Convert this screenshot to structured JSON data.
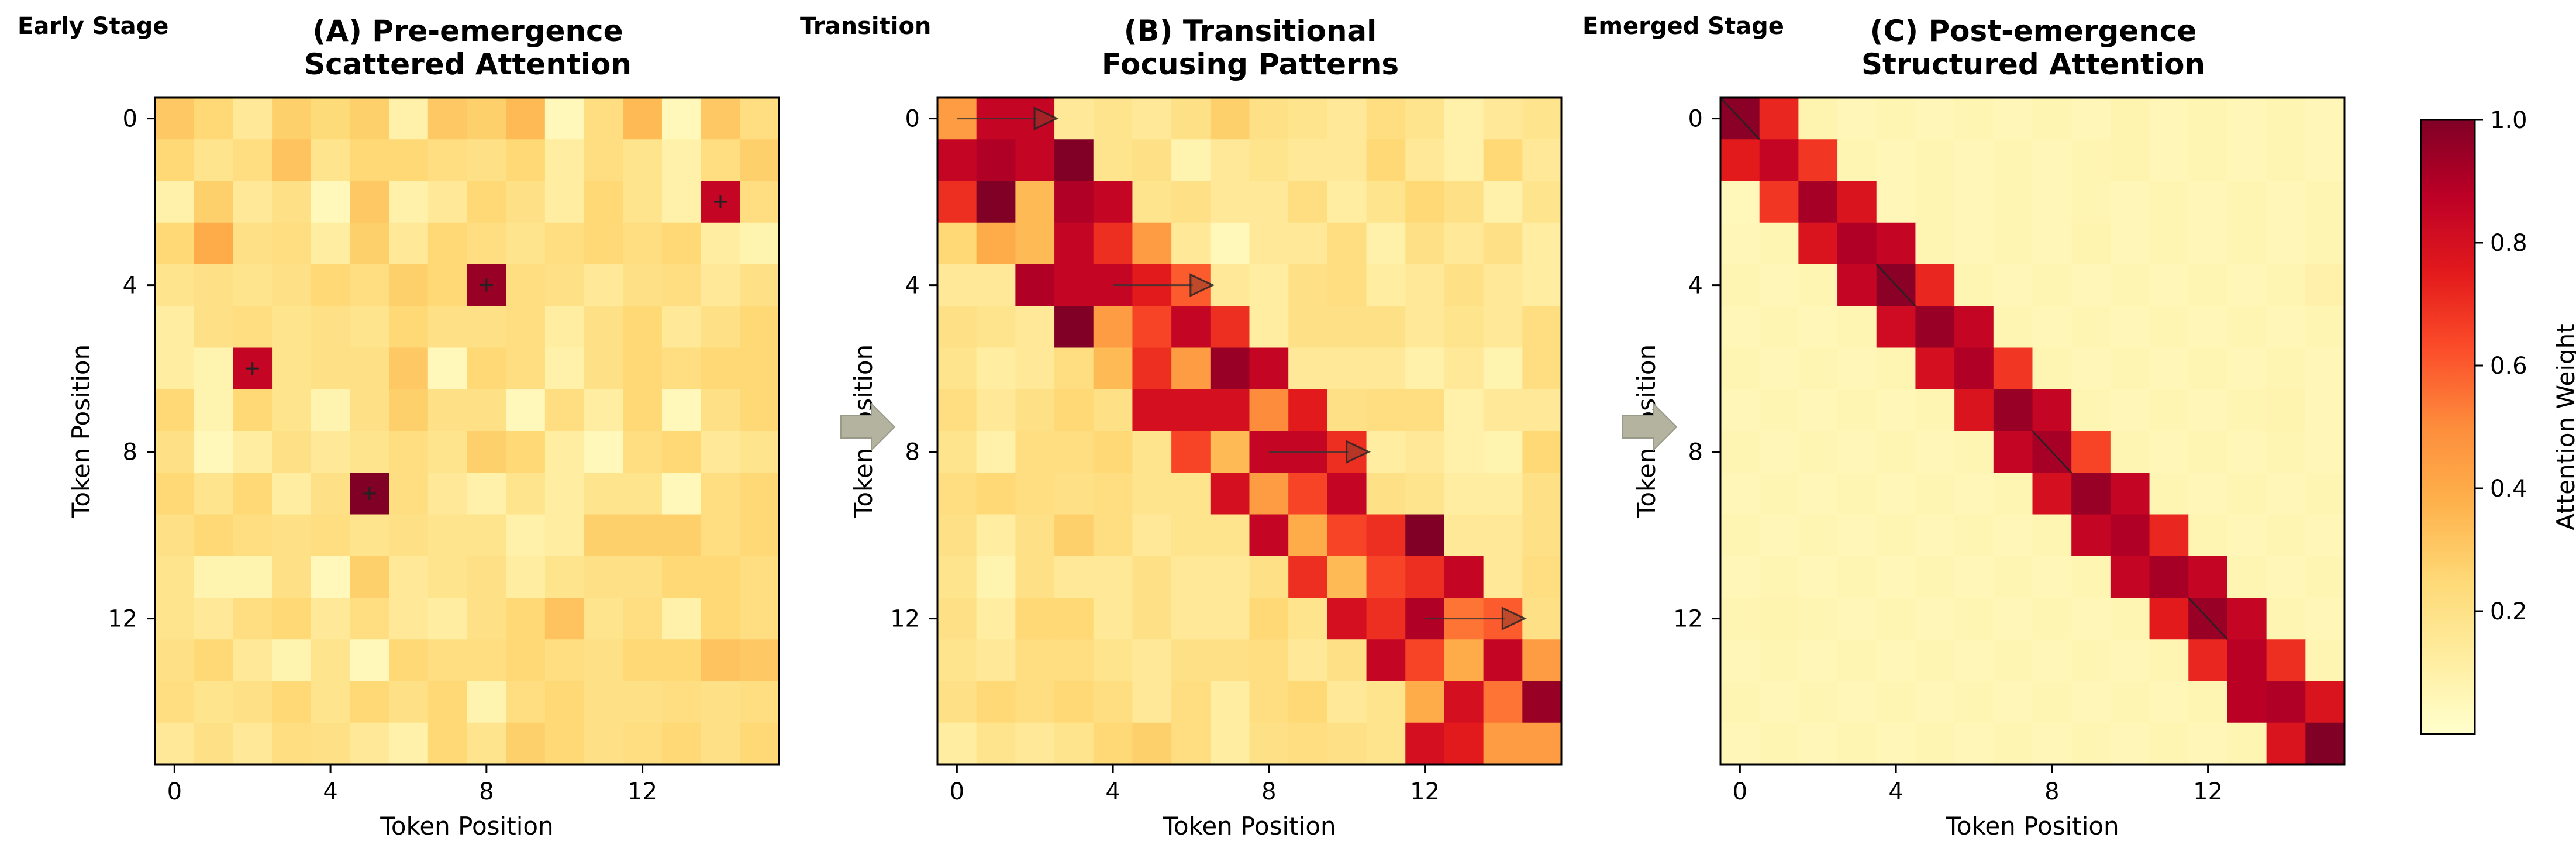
{
  "chart_data": [
    {
      "type": "heatmap",
      "stage_label": "Early Stage",
      "title_lines": [
        "(A) Pre-emergence",
        "Scattered Attention"
      ],
      "xlabel": "Token Position",
      "ylabel": "Token Position",
      "x_ticks": [
        0,
        4,
        8,
        12
      ],
      "y_ticks": [
        0,
        4,
        8,
        12
      ],
      "size": 16,
      "markers": [
        [
          2,
          14
        ],
        [
          4,
          8
        ],
        [
          6,
          2
        ],
        [
          9,
          5
        ]
      ],
      "arrows": [],
      "values": [
        [
          0.3,
          0.25,
          0.15,
          0.28,
          0.24,
          0.28,
          0.1,
          0.3,
          0.28,
          0.35,
          0.05,
          0.22,
          0.35,
          0.05,
          0.3,
          0.22
        ],
        [
          0.25,
          0.18,
          0.22,
          0.32,
          0.18,
          0.25,
          0.25,
          0.22,
          0.2,
          0.25,
          0.12,
          0.22,
          0.18,
          0.1,
          0.22,
          0.28
        ],
        [
          0.1,
          0.28,
          0.15,
          0.2,
          0.05,
          0.3,
          0.1,
          0.15,
          0.25,
          0.2,
          0.12,
          0.25,
          0.18,
          0.1,
          0.85,
          0.22
        ],
        [
          0.25,
          0.4,
          0.2,
          0.22,
          0.12,
          0.28,
          0.15,
          0.25,
          0.22,
          0.18,
          0.22,
          0.25,
          0.22,
          0.25,
          0.12,
          0.08
        ],
        [
          0.18,
          0.2,
          0.18,
          0.2,
          0.25,
          0.22,
          0.28,
          0.25,
          0.95,
          0.22,
          0.2,
          0.15,
          0.2,
          0.22,
          0.15,
          0.2
        ],
        [
          0.12,
          0.2,
          0.22,
          0.18,
          0.2,
          0.18,
          0.25,
          0.2,
          0.2,
          0.22,
          0.12,
          0.2,
          0.25,
          0.15,
          0.2,
          0.25
        ],
        [
          0.12,
          0.08,
          0.85,
          0.18,
          0.2,
          0.2,
          0.3,
          0.05,
          0.25,
          0.22,
          0.1,
          0.2,
          0.25,
          0.22,
          0.25,
          0.25
        ],
        [
          0.25,
          0.08,
          0.25,
          0.18,
          0.08,
          0.2,
          0.28,
          0.2,
          0.2,
          0.05,
          0.22,
          0.12,
          0.25,
          0.05,
          0.2,
          0.25
        ],
        [
          0.2,
          0.05,
          0.12,
          0.2,
          0.15,
          0.18,
          0.22,
          0.18,
          0.28,
          0.25,
          0.12,
          0.05,
          0.22,
          0.25,
          0.15,
          0.18
        ],
        [
          0.25,
          0.18,
          0.25,
          0.12,
          0.2,
          1.0,
          0.22,
          0.15,
          0.1,
          0.18,
          0.12,
          0.18,
          0.18,
          0.05,
          0.22,
          0.25
        ],
        [
          0.2,
          0.25,
          0.22,
          0.2,
          0.22,
          0.18,
          0.2,
          0.18,
          0.18,
          0.1,
          0.12,
          0.28,
          0.28,
          0.28,
          0.22,
          0.25
        ],
        [
          0.18,
          0.08,
          0.08,
          0.2,
          0.05,
          0.28,
          0.15,
          0.18,
          0.2,
          0.12,
          0.18,
          0.2,
          0.2,
          0.25,
          0.25,
          0.22
        ],
        [
          0.18,
          0.15,
          0.22,
          0.25,
          0.15,
          0.22,
          0.15,
          0.12,
          0.2,
          0.25,
          0.32,
          0.18,
          0.22,
          0.1,
          0.25,
          0.22
        ],
        [
          0.2,
          0.25,
          0.15,
          0.08,
          0.18,
          0.05,
          0.25,
          0.22,
          0.22,
          0.25,
          0.22,
          0.2,
          0.25,
          0.25,
          0.32,
          0.3
        ],
        [
          0.22,
          0.18,
          0.2,
          0.25,
          0.18,
          0.25,
          0.2,
          0.25,
          0.08,
          0.22,
          0.25,
          0.2,
          0.2,
          0.22,
          0.2,
          0.22
        ],
        [
          0.15,
          0.2,
          0.15,
          0.22,
          0.2,
          0.15,
          0.1,
          0.25,
          0.18,
          0.28,
          0.25,
          0.2,
          0.22,
          0.25,
          0.2,
          0.25
        ]
      ]
    },
    {
      "type": "heatmap",
      "stage_label": "Transition",
      "title_lines": [
        "(B) Transitional",
        "Focusing Patterns"
      ],
      "xlabel": "Token Position",
      "ylabel": "Token Position",
      "x_ticks": [
        0,
        4,
        8,
        12
      ],
      "y_ticks": [
        0,
        4,
        8,
        12
      ],
      "size": 16,
      "markers": [],
      "arrows": [
        [
          0,
          0,
          2.5
        ],
        [
          4,
          4,
          6.5
        ],
        [
          8,
          8,
          10.5
        ],
        [
          12,
          12,
          14.5
        ]
      ],
      "values": [
        [
          0.45,
          0.85,
          0.85,
          0.15,
          0.18,
          0.15,
          0.2,
          0.28,
          0.2,
          0.18,
          0.15,
          0.22,
          0.18,
          0.1,
          0.15,
          0.18
        ],
        [
          0.85,
          0.9,
          0.85,
          1.0,
          0.18,
          0.2,
          0.08,
          0.15,
          0.18,
          0.15,
          0.15,
          0.25,
          0.15,
          0.1,
          0.25,
          0.15
        ],
        [
          0.7,
          1.0,
          0.35,
          0.9,
          0.85,
          0.18,
          0.2,
          0.15,
          0.15,
          0.22,
          0.12,
          0.18,
          0.25,
          0.2,
          0.1,
          0.18
        ],
        [
          0.25,
          0.4,
          0.35,
          0.85,
          0.7,
          0.45,
          0.15,
          0.05,
          0.15,
          0.15,
          0.22,
          0.1,
          0.2,
          0.15,
          0.2,
          0.12
        ],
        [
          0.15,
          0.15,
          0.9,
          0.85,
          0.85,
          0.75,
          0.6,
          0.15,
          0.12,
          0.2,
          0.22,
          0.12,
          0.15,
          0.2,
          0.15,
          0.12
        ],
        [
          0.2,
          0.18,
          0.15,
          1.0,
          0.45,
          0.65,
          0.85,
          0.7,
          0.12,
          0.2,
          0.2,
          0.2,
          0.15,
          0.18,
          0.15,
          0.22
        ],
        [
          0.18,
          0.12,
          0.15,
          0.22,
          0.35,
          0.7,
          0.45,
          0.95,
          0.85,
          0.15,
          0.15,
          0.15,
          0.1,
          0.15,
          0.08,
          0.22
        ],
        [
          0.22,
          0.15,
          0.2,
          0.25,
          0.2,
          0.8,
          0.8,
          0.8,
          0.5,
          0.75,
          0.2,
          0.22,
          0.22,
          0.1,
          0.15,
          0.15
        ],
        [
          0.18,
          0.1,
          0.22,
          0.22,
          0.25,
          0.18,
          0.65,
          0.35,
          0.85,
          0.85,
          0.7,
          0.12,
          0.15,
          0.1,
          0.08,
          0.25
        ],
        [
          0.22,
          0.25,
          0.22,
          0.2,
          0.22,
          0.18,
          0.18,
          0.8,
          0.45,
          0.65,
          0.85,
          0.2,
          0.18,
          0.12,
          0.12,
          0.2
        ],
        [
          0.2,
          0.12,
          0.2,
          0.28,
          0.22,
          0.15,
          0.18,
          0.18,
          0.85,
          0.4,
          0.65,
          0.7,
          1.0,
          0.15,
          0.15,
          0.2
        ],
        [
          0.18,
          0.08,
          0.2,
          0.15,
          0.15,
          0.2,
          0.15,
          0.15,
          0.2,
          0.7,
          0.35,
          0.65,
          0.7,
          0.85,
          0.15,
          0.22
        ],
        [
          0.2,
          0.12,
          0.25,
          0.25,
          0.15,
          0.2,
          0.15,
          0.15,
          0.25,
          0.18,
          0.8,
          0.7,
          0.9,
          0.55,
          0.6,
          0.2
        ],
        [
          0.18,
          0.15,
          0.22,
          0.22,
          0.18,
          0.15,
          0.2,
          0.2,
          0.22,
          0.15,
          0.2,
          0.85,
          0.65,
          0.4,
          0.85,
          0.45
        ],
        [
          0.2,
          0.25,
          0.22,
          0.25,
          0.22,
          0.15,
          0.22,
          0.12,
          0.22,
          0.25,
          0.15,
          0.18,
          0.4,
          0.8,
          0.55,
          0.95
        ],
        [
          0.12,
          0.18,
          0.15,
          0.18,
          0.25,
          0.28,
          0.22,
          0.12,
          0.2,
          0.22,
          0.2,
          0.18,
          0.8,
          0.75,
          0.45,
          0.45
        ]
      ]
    },
    {
      "type": "heatmap",
      "stage_label": "Emerged Stage",
      "title_lines": [
        "(C) Post-emergence",
        "Structured Attention"
      ],
      "xlabel": "Token Position",
      "ylabel": "Token Position",
      "x_ticks": [
        0,
        4,
        8,
        12
      ],
      "y_ticks": [
        0,
        4,
        8,
        12
      ],
      "size": 16,
      "markers": [],
      "diagonal_strokes": [
        0,
        4,
        8,
        12
      ],
      "arrows": [],
      "values": [
        [
          0.98,
          0.72,
          0.08,
          0.06,
          0.07,
          0.06,
          0.07,
          0.06,
          0.07,
          0.06,
          0.08,
          0.06,
          0.07,
          0.06,
          0.07,
          0.06
        ],
        [
          0.75,
          0.85,
          0.68,
          0.07,
          0.06,
          0.07,
          0.06,
          0.07,
          0.06,
          0.07,
          0.08,
          0.06,
          0.07,
          0.06,
          0.07,
          0.06
        ],
        [
          0.05,
          0.68,
          0.92,
          0.78,
          0.06,
          0.07,
          0.06,
          0.07,
          0.06,
          0.07,
          0.06,
          0.07,
          0.06,
          0.07,
          0.06,
          0.07
        ],
        [
          0.06,
          0.07,
          0.78,
          0.9,
          0.85,
          0.07,
          0.06,
          0.07,
          0.06,
          0.08,
          0.06,
          0.07,
          0.06,
          0.07,
          0.06,
          0.07
        ],
        [
          0.07,
          0.06,
          0.07,
          0.85,
          0.98,
          0.72,
          0.07,
          0.06,
          0.07,
          0.06,
          0.07,
          0.06,
          0.07,
          0.06,
          0.07,
          0.1
        ],
        [
          0.06,
          0.07,
          0.06,
          0.07,
          0.82,
          0.95,
          0.85,
          0.07,
          0.06,
          0.07,
          0.06,
          0.07,
          0.06,
          0.07,
          0.06,
          0.07
        ],
        [
          0.07,
          0.06,
          0.07,
          0.06,
          0.07,
          0.8,
          0.9,
          0.68,
          0.07,
          0.06,
          0.07,
          0.06,
          0.07,
          0.06,
          0.07,
          0.06
        ],
        [
          0.06,
          0.07,
          0.06,
          0.07,
          0.06,
          0.07,
          0.78,
          0.95,
          0.85,
          0.07,
          0.06,
          0.07,
          0.06,
          0.07,
          0.08,
          0.06
        ],
        [
          0.07,
          0.06,
          0.07,
          0.06,
          0.07,
          0.06,
          0.07,
          0.85,
          0.92,
          0.65,
          0.07,
          0.06,
          0.07,
          0.06,
          0.07,
          0.06
        ],
        [
          0.06,
          0.07,
          0.06,
          0.07,
          0.06,
          0.07,
          0.06,
          0.07,
          0.8,
          0.95,
          0.85,
          0.07,
          0.06,
          0.07,
          0.06,
          0.07
        ],
        [
          0.07,
          0.06,
          0.07,
          0.06,
          0.07,
          0.06,
          0.07,
          0.06,
          0.07,
          0.85,
          0.9,
          0.72,
          0.07,
          0.06,
          0.07,
          0.06
        ],
        [
          0.06,
          0.07,
          0.06,
          0.07,
          0.06,
          0.07,
          0.06,
          0.07,
          0.06,
          0.07,
          0.85,
          0.92,
          0.85,
          0.07,
          0.06,
          0.07
        ],
        [
          0.07,
          0.08,
          0.07,
          0.06,
          0.07,
          0.06,
          0.07,
          0.06,
          0.07,
          0.06,
          0.07,
          0.75,
          0.95,
          0.85,
          0.07,
          0.06
        ],
        [
          0.06,
          0.07,
          0.06,
          0.07,
          0.06,
          0.07,
          0.06,
          0.07,
          0.06,
          0.07,
          0.06,
          0.07,
          0.72,
          0.88,
          0.7,
          0.07
        ],
        [
          0.07,
          0.06,
          0.07,
          0.06,
          0.07,
          0.06,
          0.07,
          0.06,
          0.07,
          0.06,
          0.07,
          0.06,
          0.07,
          0.88,
          0.9,
          0.78
        ],
        [
          0.06,
          0.07,
          0.06,
          0.07,
          0.06,
          0.07,
          0.06,
          0.07,
          0.06,
          0.07,
          0.06,
          0.07,
          0.06,
          0.07,
          0.78,
          1.0
        ]
      ]
    }
  ],
  "colorbar": {
    "label": "Attention Weight",
    "ticks": [
      0.2,
      0.4,
      0.6,
      0.8,
      1.0
    ],
    "tick_labels": [
      "0.2",
      "0.4",
      "0.6",
      "0.8",
      "1.0"
    ],
    "range": [
      0.0,
      1.0
    ],
    "colormap": "YlOrRd",
    "colormap_stops": [
      "#ffffcc",
      "#ffeda0",
      "#fed976",
      "#feb24c",
      "#fd8d3c",
      "#fc4e2a",
      "#e31a1c",
      "#bd0026",
      "#800026"
    ]
  },
  "transition_arrow_color": "#b3b3a0"
}
